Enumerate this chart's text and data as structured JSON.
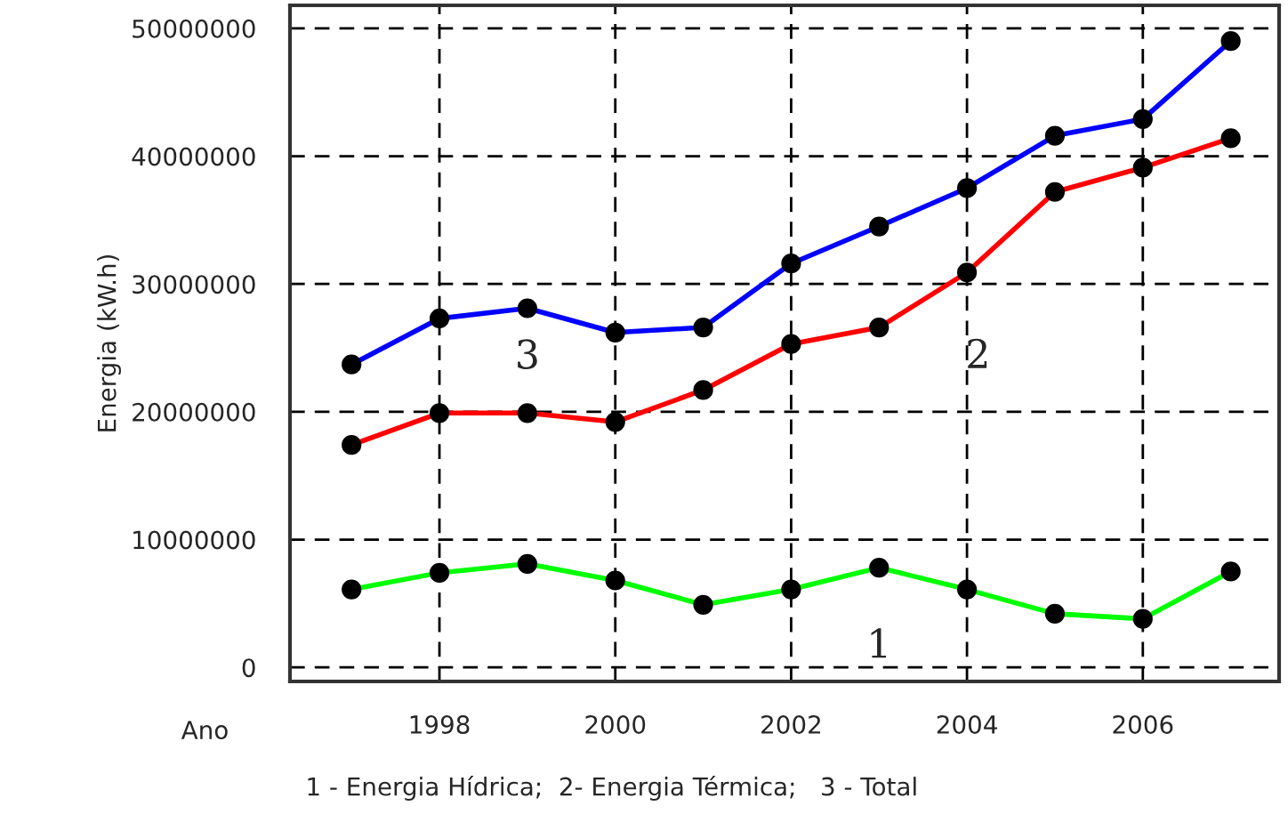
{
  "chart_data": {
    "type": "line",
    "xlabel": "Ano",
    "ylabel": "Energia (kW.h)",
    "x": [
      1997,
      1998,
      1999,
      2000,
      2001,
      2002,
      2003,
      2004,
      2005,
      2006,
      2007
    ],
    "series": [
      {
        "name": "1",
        "color": "#00ff00",
        "values": [
          6100000,
          7400000,
          8100000,
          6800000,
          4900000,
          6100000,
          7800000,
          6100000,
          4200000,
          3800000,
          7500000
        ]
      },
      {
        "name": "2",
        "color": "#ff0000",
        "values": [
          17400000,
          19900000,
          19900000,
          19200000,
          21700000,
          25300000,
          26600000,
          30900000,
          37200000,
          39100000,
          41400000
        ]
      },
      {
        "name": "3",
        "color": "#0000ff",
        "values": [
          23700000,
          27300000,
          28100000,
          26200000,
          26600000,
          31600000,
          34500000,
          37500000,
          41600000,
          42900000,
          49000000
        ]
      }
    ],
    "xlim": [
      1996.3,
      2007.55
    ],
    "xticks": [
      1998,
      2000,
      2002,
      2004,
      2006
    ],
    "ylim": [
      -1100000,
      51800000
    ],
    "yticks": [
      0,
      10000000,
      20000000,
      30000000,
      40000000,
      50000000
    ],
    "grid": true,
    "marker": "circle",
    "line_style": "solid",
    "annotations": [
      "1 - Energia Hídrica;  2- Energia Térmica;   3 - Total"
    ]
  }
}
